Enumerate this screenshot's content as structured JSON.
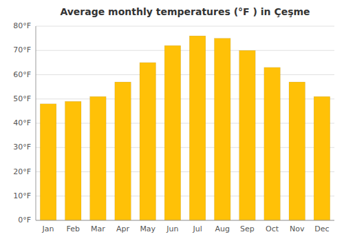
{
  "chart_data": {
    "type": "bar",
    "title": "Average monthly temperatures (°F ) in Çeşme",
    "categories": [
      "Jan",
      "Feb",
      "Mar",
      "Apr",
      "May",
      "Jun",
      "Jul",
      "Aug",
      "Sep",
      "Oct",
      "Nov",
      "Dec"
    ],
    "values": [
      48,
      49,
      51,
      57,
      65,
      72,
      76,
      75,
      70,
      63,
      57,
      51
    ],
    "color": "#FFC107",
    "ylim": [
      0,
      80
    ],
    "yticks": [
      {
        "value": 0,
        "label": "0°F"
      },
      {
        "value": 10,
        "label": "10°F"
      },
      {
        "value": 20,
        "label": "20°F"
      },
      {
        "value": 30,
        "label": "30°F"
      },
      {
        "value": 40,
        "label": "40°F"
      },
      {
        "value": 50,
        "label": "50°F"
      },
      {
        "value": 60,
        "label": "60°F"
      },
      {
        "value": 70,
        "label": "70°F"
      },
      {
        "value": 80,
        "label": "80°F"
      }
    ],
    "grid": true
  }
}
